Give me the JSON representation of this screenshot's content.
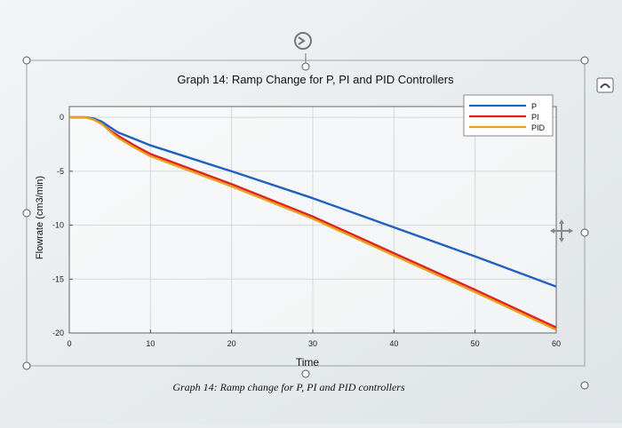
{
  "chart_data": {
    "type": "line",
    "title": "Graph 14: Ramp Change for P, PI and PID Controllers",
    "xlabel": "Time",
    "ylabel": "Flowrate (cm3/min)",
    "caption": "Graph 14: Ramp change for P, PI and PID controllers",
    "xlim": [
      0,
      60
    ],
    "ylim": [
      -20,
      1
    ],
    "xticks": [
      "0",
      "10",
      "20",
      "30",
      "40",
      "50",
      "60"
    ],
    "yticks": [
      "0",
      "-5",
      "-10",
      "-15",
      "-20"
    ],
    "grid": true,
    "legend_position": "top-right",
    "series": [
      {
        "name": "P",
        "color": "#2060c0",
        "x": [
          0,
          1,
          2,
          3,
          4,
          5,
          6,
          8,
          10,
          15,
          20,
          30,
          40,
          50,
          60
        ],
        "y": [
          0,
          0,
          0,
          -0.1,
          -0.4,
          -0.9,
          -1.4,
          -2.0,
          -2.6,
          -3.8,
          -5.0,
          -7.5,
          -10.2,
          -12.9,
          -15.7
        ]
      },
      {
        "name": "PI",
        "color": "#e02020",
        "x": [
          0,
          1,
          2,
          3,
          4,
          5,
          6,
          8,
          10,
          15,
          20,
          30,
          40,
          50,
          60
        ],
        "y": [
          0,
          0,
          0,
          -0.2,
          -0.6,
          -1.2,
          -1.7,
          -2.6,
          -3.4,
          -4.8,
          -6.2,
          -9.2,
          -12.6,
          -16.0,
          -19.5
        ]
      },
      {
        "name": "PID",
        "color": "#e8a020",
        "x": [
          0,
          1,
          2,
          3,
          4,
          5,
          6,
          8,
          10,
          15,
          20,
          30,
          40,
          50,
          60
        ],
        "y": [
          0,
          0,
          0,
          -0.2,
          -0.6,
          -1.3,
          -1.9,
          -2.8,
          -3.6,
          -5.0,
          -6.4,
          -9.4,
          -12.8,
          -16.2,
          -19.7
        ]
      }
    ]
  }
}
